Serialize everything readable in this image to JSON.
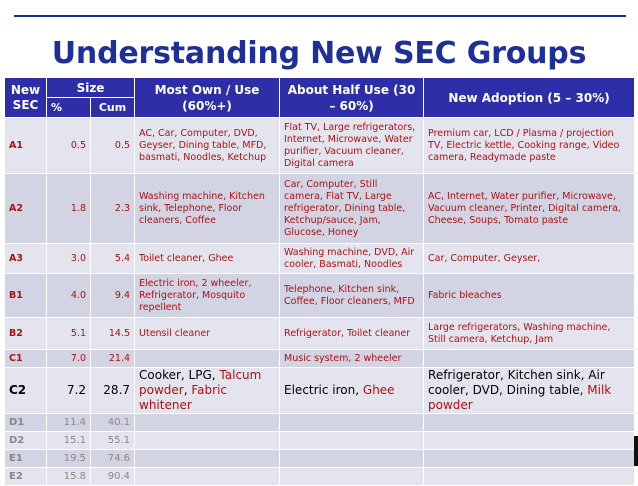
{
  "title": "Understanding New SEC Groups",
  "headers": {
    "new_sec": "New SEC",
    "size": "Size",
    "pct": "%",
    "cum": "Cum",
    "most_own": "Most Own / Use (60%+)",
    "about_half": "About Half Use (30 – 60%)",
    "new_adoption": "New Adoption (5 – 30%)"
  },
  "rows": [
    {
      "sec": "A1",
      "pct": "0.5",
      "cum": "0.5",
      "most": "AC, Car, Computer, DVD, Geyser, Dining table, MFD, basmati, Noodles, Ketchup",
      "half": "Flat TV, Large refrigerators, Internet, Microwave, Water purifier, Vacuum cleaner, Digital camera",
      "adopt": "Premium car, LCD / Plasma / projection TV, Electric kettle, Cooking range, Video camera, Readymade paste"
    },
    {
      "sec": "A2",
      "pct": "1.8",
      "cum": "2.3",
      "most": "Washing machine, Kitchen sink, Telephone, Floor cleaners, Coffee",
      "half": "Car, Computer, Still camera, Flat TV, Large refrigerator, Dining table, Ketchup/sauce, Jam, Glucose, Honey",
      "adopt": "AC, Internet, Water purifier, Microwave, Vacuum cleaner, Printer, Digital camera, Cheese, Soups, Tomato paste"
    },
    {
      "sec": "A3",
      "pct": "3.0",
      "cum": "5.4",
      "most": "Toilet cleaner, Ghee",
      "half": "Washing machine, DVD, Air cooler, Basmati, Noodles",
      "adopt": "Car, Computer, Geyser,"
    },
    {
      "sec": "B1",
      "pct": "4.0",
      "cum": "9.4",
      "most": "Electric iron, 2 wheeler, Refrigerator, Mosquito repellent",
      "half": "Telephone, Kitchen sink, Coffee, Floor cleaners, MFD",
      "adopt": "Fabric bleaches"
    },
    {
      "sec": "B2",
      "pct": "5.1",
      "cum": "14.5",
      "most": "Utensil cleaner",
      "half": "Refrigerator, Toilet cleaner",
      "adopt": "Large refrigerators, Washing machine, Still camera, Ketchup, Jam"
    },
    {
      "sec": "C1",
      "pct": "7.0",
      "cum": "21.4",
      "most": "",
      "half": "Music system, 2 wheeler",
      "adopt": ""
    },
    {
      "sec": "C2",
      "pct": "7.2",
      "cum": "28.7",
      "most_black": "Cooker, LPG, ",
      "most_red1": "Talcum powder",
      "most_sep": ", ",
      "most_red2": "Fabric whitener",
      "half_black": "Electric iron, ",
      "half_red": "Ghee",
      "adopt_black": "Refrigerator, Kitchen sink, Air cooler, DVD, Dining table, ",
      "adopt_red": "Milk powder"
    },
    {
      "sec": "D1",
      "pct": "11.4",
      "cum": "40.1"
    },
    {
      "sec": "D2",
      "pct": "15.1",
      "cum": "55.1"
    },
    {
      "sec": "E1",
      "pct": "19.5",
      "cum": "74.6"
    },
    {
      "sec": "E2",
      "pct": "15.8",
      "cum": "90.4"
    }
  ]
}
